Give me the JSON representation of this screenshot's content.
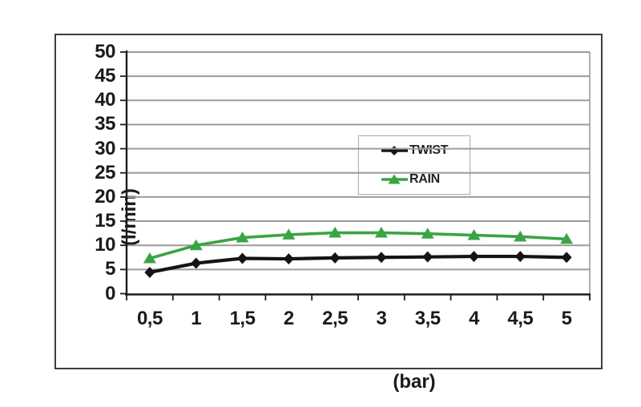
{
  "chart_data": {
    "type": "line",
    "title": "",
    "xlabel": "(bar)",
    "ylabel": "(l/min)",
    "categories": [
      "0,5",
      "1",
      "1,5",
      "2",
      "2,5",
      "3",
      "3,5",
      "4",
      "4,5",
      "5"
    ],
    "x_values": [
      0.5,
      1,
      1.5,
      2,
      2.5,
      3,
      3.5,
      4,
      4.5,
      5
    ],
    "series": [
      {
        "name": "TWIST",
        "values": [
          4.4,
          6.3,
          7.3,
          7.2,
          7.4,
          7.5,
          7.6,
          7.7,
          7.7,
          7.5
        ],
        "color": "#141414",
        "marker": "diamond"
      },
      {
        "name": "RAIN",
        "values": [
          7.3,
          10.0,
          11.6,
          12.2,
          12.6,
          12.6,
          12.4,
          12.1,
          11.8,
          11.3
        ],
        "color": "#3aa443",
        "marker": "triangle"
      }
    ],
    "ylim": [
      0,
      50
    ],
    "ytick_step": 5,
    "ytick_labels": [
      "0",
      "5",
      "10",
      "15",
      "20",
      "25",
      "30",
      "35",
      "40",
      "45",
      "50"
    ],
    "grid": "horizontal",
    "legend_position": "upper-middle",
    "colors": {
      "background": "#ffffff",
      "gridline": "#9b9b9b",
      "axis": "#1c1c1c",
      "frame_border": "#3e3e3e",
      "legend_border": "#b0b0b0",
      "tick_text": "#1b1b1b"
    }
  }
}
